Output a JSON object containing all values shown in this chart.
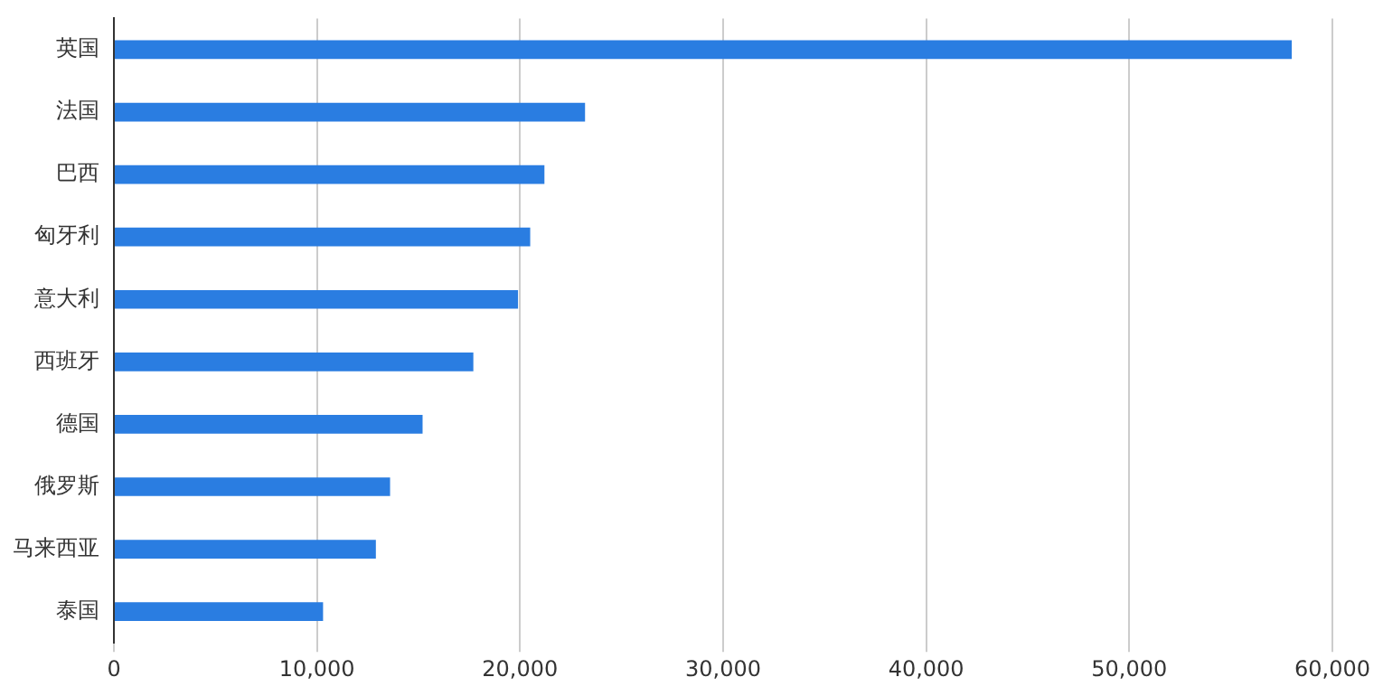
{
  "chart_data": {
    "type": "bar",
    "orientation": "horizontal",
    "categories": [
      "英国",
      "法国",
      "巴西",
      "匈牙利",
      "意大利",
      "西班牙",
      "德国",
      "俄罗斯",
      "马来西亚",
      "泰国"
    ],
    "values": [
      58000,
      23200,
      21200,
      20500,
      19900,
      17700,
      15200,
      13600,
      12900,
      10300
    ],
    "color": "#2a7de1",
    "xlim": [
      0,
      60000
    ],
    "xticks": [
      {
        "value": 0,
        "label": "0"
      },
      {
        "value": 10000,
        "label": "10,000"
      },
      {
        "value": 20000,
        "label": "20,000"
      },
      {
        "value": 30000,
        "label": "30,000"
      },
      {
        "value": 40000,
        "label": "40,000"
      },
      {
        "value": 50000,
        "label": "50,000"
      },
      {
        "value": 60000,
        "label": "60,000"
      }
    ],
    "grid": "x",
    "legend": false
  }
}
